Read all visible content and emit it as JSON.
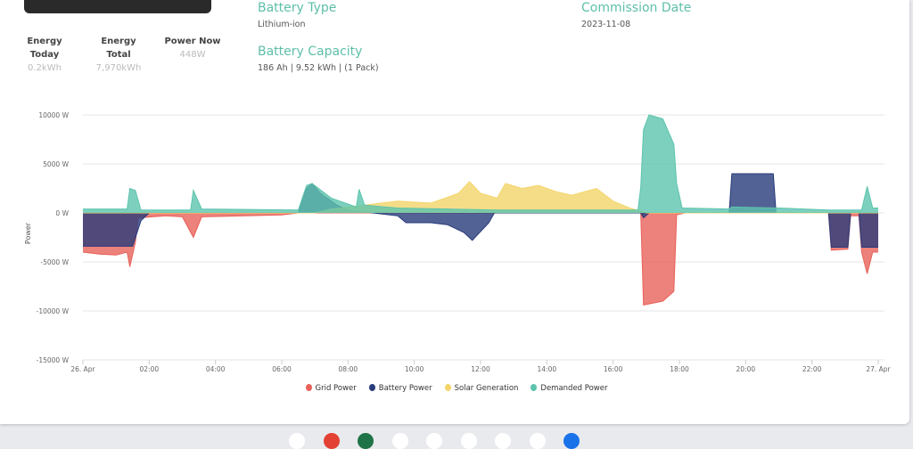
{
  "stats": [
    {
      "label1": "Energy",
      "label2": "Today",
      "value": "0.2kWh"
    },
    {
      "label1": "Energy",
      "label2": "Total",
      "value": "7,970kWh"
    },
    {
      "label1": "Power Now",
      "label2": "",
      "value": "448W"
    }
  ],
  "info": {
    "battery_type_label": "Battery Type",
    "battery_type": "Lithium-ion",
    "capacity_label": "Battery Capacity",
    "capacity": "186 Ah | 9.52 kWh | (1 Pack)",
    "commission_label": "Commission Date",
    "commission": "2023-11-08"
  },
  "chart_data": {
    "type": "area",
    "ylabel": "Power",
    "ylim": [
      -15000,
      10000
    ],
    "yticks": [
      "10000 W",
      "5000 W",
      "0 W",
      "-5000 W",
      "-10000 W",
      "-15000 W"
    ],
    "yvalues": [
      10000,
      5000,
      0,
      -5000,
      -10000,
      -15000
    ],
    "xticks": [
      "26. Apr",
      "02:00",
      "04:00",
      "06:00",
      "08:00",
      "10:00",
      "12:00",
      "14:00",
      "16:00",
      "18:00",
      "20:00",
      "22:00",
      "27. Apr"
    ],
    "grid": true,
    "legend": "bottom",
    "series": [
      {
        "name": "Grid Power",
        "color": "#e8625a",
        "points": [
          [
            "00:00",
            -4000
          ],
          [
            "00:30",
            -4200
          ],
          [
            "01:00",
            -4300
          ],
          [
            "01:20",
            -4000
          ],
          [
            "01:25",
            -5500
          ],
          [
            "01:35",
            -3000
          ],
          [
            "01:40",
            -500
          ],
          [
            "02:30",
            -300
          ],
          [
            "03:00",
            -400
          ],
          [
            "03:20",
            -2500
          ],
          [
            "03:35",
            -400
          ],
          [
            "06:00",
            -200
          ],
          [
            "06:30",
            0
          ],
          [
            "16:50",
            0
          ],
          [
            "16:55",
            -9400
          ],
          [
            "17:30",
            -9000
          ],
          [
            "17:50",
            -8000
          ],
          [
            "17:55",
            -200
          ],
          [
            "18:10",
            0
          ],
          [
            "22:30",
            0
          ],
          [
            "22:35",
            -3800
          ],
          [
            "23:05",
            -3700
          ],
          [
            "23:10",
            -300
          ],
          [
            "23:25",
            -300
          ],
          [
            "23:30",
            -4000
          ],
          [
            "23:40",
            -6200
          ],
          [
            "23:50",
            -4000
          ],
          [
            "24:00",
            -4000
          ]
        ]
      },
      {
        "name": "Battery Power",
        "color": "#283b7a",
        "points": [
          [
            "00:00",
            -3400
          ],
          [
            "01:30",
            -3400
          ],
          [
            "01:45",
            -800
          ],
          [
            "02:00",
            0
          ],
          [
            "06:30",
            0
          ],
          [
            "06:45",
            2500
          ],
          [
            "06:55",
            3000
          ],
          [
            "07:10",
            2000
          ],
          [
            "07:40",
            800
          ],
          [
            "08:00",
            300
          ],
          [
            "09:30",
            -300
          ],
          [
            "09:45",
            -1000
          ],
          [
            "10:30",
            -1000
          ],
          [
            "11:00",
            -1200
          ],
          [
            "11:30",
            -2000
          ],
          [
            "11:45",
            -2800
          ],
          [
            "12:15",
            -1000
          ],
          [
            "12:25",
            0
          ],
          [
            "16:50",
            0
          ],
          [
            "16:55",
            -500
          ],
          [
            "17:05",
            0
          ],
          [
            "19:30",
            0
          ],
          [
            "19:35",
            4000
          ],
          [
            "20:50",
            4000
          ],
          [
            "20:55",
            0
          ],
          [
            "22:30",
            0
          ],
          [
            "22:35",
            -3500
          ],
          [
            "23:05",
            -3500
          ],
          [
            "23:10",
            0
          ],
          [
            "23:25",
            0
          ],
          [
            "23:30",
            -3500
          ],
          [
            "24:00",
            -3500
          ]
        ]
      },
      {
        "name": "Solar Generation",
        "color": "#f3d56a",
        "points": [
          [
            "00:00",
            0
          ],
          [
            "07:00",
            0
          ],
          [
            "07:30",
            400
          ],
          [
            "08:30",
            800
          ],
          [
            "09:30",
            1200
          ],
          [
            "10:30",
            1000
          ],
          [
            "11:20",
            2000
          ],
          [
            "11:40",
            3200
          ],
          [
            "12:00",
            2000
          ],
          [
            "12:30",
            1500
          ],
          [
            "12:45",
            3000
          ],
          [
            "13:15",
            2500
          ],
          [
            "13:45",
            2800
          ],
          [
            "14:15",
            2200
          ],
          [
            "14:45",
            1800
          ],
          [
            "15:30",
            2500
          ],
          [
            "16:00",
            1200
          ],
          [
            "16:30",
            500
          ],
          [
            "17:00",
            0
          ],
          [
            "24:00",
            0
          ]
        ]
      },
      {
        "name": "Demanded Power",
        "color": "#5cc4ad",
        "points": [
          [
            "00:00",
            400
          ],
          [
            "01:20",
            400
          ],
          [
            "01:25",
            2500
          ],
          [
            "01:35",
            2300
          ],
          [
            "01:45",
            300
          ],
          [
            "03:15",
            300
          ],
          [
            "03:20",
            2300
          ],
          [
            "03:35",
            400
          ],
          [
            "06:30",
            300
          ],
          [
            "06:45",
            2800
          ],
          [
            "06:55",
            3000
          ],
          [
            "07:30",
            1500
          ],
          [
            "08:15",
            600
          ],
          [
            "08:20",
            2400
          ],
          [
            "08:30",
            800
          ],
          [
            "09:30",
            500
          ],
          [
            "12:30",
            300
          ],
          [
            "16:45",
            300
          ],
          [
            "16:50",
            2600
          ],
          [
            "16:55",
            8500
          ],
          [
            "17:05",
            10000
          ],
          [
            "17:30",
            9600
          ],
          [
            "17:50",
            7000
          ],
          [
            "17:55",
            3000
          ],
          [
            "18:05",
            500
          ],
          [
            "19:30",
            400
          ],
          [
            "19:35",
            600
          ],
          [
            "21:00",
            500
          ],
          [
            "22:30",
            300
          ],
          [
            "23:30",
            300
          ],
          [
            "23:40",
            2700
          ],
          [
            "23:50",
            500
          ],
          [
            "24:00",
            500
          ]
        ]
      }
    ]
  },
  "dock": {
    "colors": [
      "#ffffff",
      "#e34133",
      "#1e7446",
      "#ffffff",
      "#ffffff",
      "#ffffff",
      "#ffffff",
      "#ffffff",
      "#1a73e8"
    ]
  }
}
